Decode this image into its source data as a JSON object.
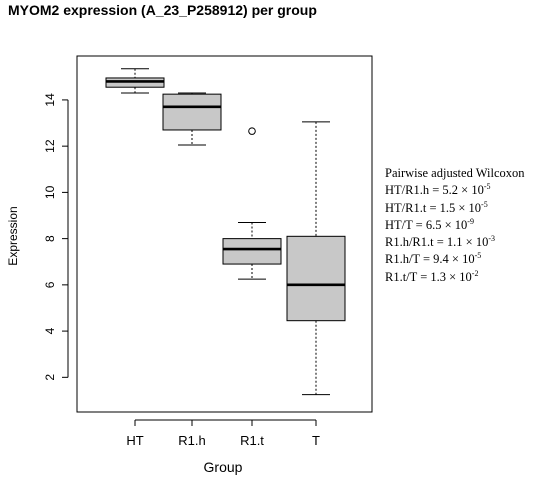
{
  "chart_data": {
    "type": "box",
    "title": "MYOM2 expression (A_23_P258912) per group",
    "xlabel": "Group",
    "ylabel": "Expression",
    "ylim": [
      0.5,
      15.9
    ],
    "yticks": [
      2,
      4,
      6,
      8,
      10,
      12,
      14
    ],
    "categories": [
      "HT",
      "R1.h",
      "R1.t",
      "T"
    ],
    "boxes": [
      {
        "group": "HT",
        "whisker_low": 14.3,
        "q1": 14.55,
        "median": 14.8,
        "q3": 14.95,
        "whisker_high": 15.35,
        "outliers": []
      },
      {
        "group": "R1.h",
        "whisker_low": 12.05,
        "q1": 12.7,
        "median": 13.7,
        "q3": 14.25,
        "whisker_high": 14.3,
        "outliers": []
      },
      {
        "group": "R1.t",
        "whisker_low": 6.25,
        "q1": 6.9,
        "median": 7.55,
        "q3": 8.0,
        "whisker_high": 8.7,
        "outliers": [
          12.65
        ]
      },
      {
        "group": "T",
        "whisker_low": 1.25,
        "q1": 4.45,
        "median": 6.0,
        "q3": 8.1,
        "whisker_high": 13.05,
        "outliers": []
      }
    ],
    "box_fill": "#c8c8c8",
    "grid": false,
    "annotation": {
      "heading": "Pairwise adjusted Wilcoxon",
      "lines": [
        {
          "label": "HT/R1.h = 5.2 × 10",
          "exponent": "-5"
        },
        {
          "label": "HT/R1.t = 1.5 × 10",
          "exponent": "-5"
        },
        {
          "label": "HT/T = 6.5 × 10",
          "exponent": "-9"
        },
        {
          "label": "R1.h/R1.t = 1.1 × 10",
          "exponent": "-3"
        },
        {
          "label": "R1.h/T = 9.4 × 10",
          "exponent": "-5"
        },
        {
          "label": "R1.t/T = 1.3 × 10",
          "exponent": "-2"
        }
      ]
    }
  }
}
